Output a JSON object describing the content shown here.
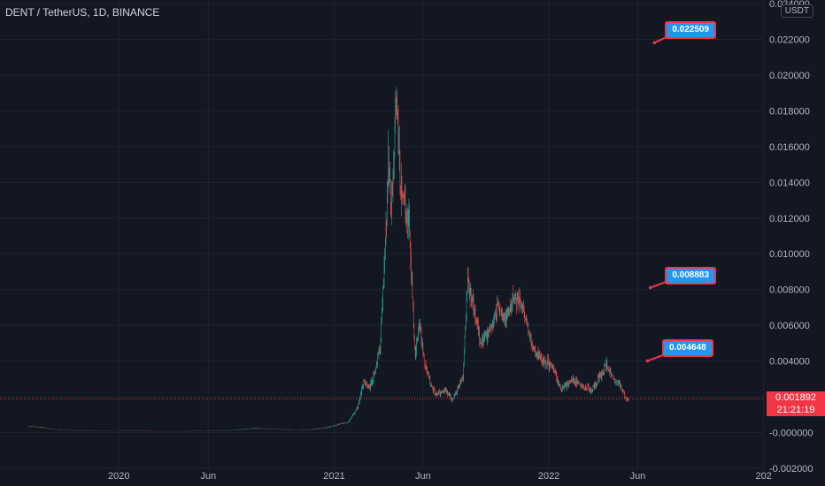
{
  "header": {
    "title": "DENT / TetherUS, 1D, BINANCE",
    "currency": "USDT"
  },
  "last_price": {
    "value": "0.001892",
    "countdown": "21:21:19"
  },
  "callouts": [
    {
      "label": "0.022509",
      "anchor_date": "2022-07-25",
      "anchor_price": 0.0225,
      "tip_date": "2022-07-07",
      "tip_price": 0.0224
    },
    {
      "label": "0.008883",
      "anchor_date": "2022-07-25",
      "anchor_price": 0.0088,
      "tip_date": "2022-06-30",
      "tip_price": 0.0087
    },
    {
      "label": "0.004648",
      "anchor_date": "2022-07-20",
      "anchor_price": 0.0047,
      "tip_date": "2022-06-25",
      "tip_price": 0.0046
    }
  ],
  "colors": {
    "background": "#131722",
    "grid": "#1f2330",
    "up": "#26a69a",
    "down": "#ef5350",
    "axis_text": "#b2b5be",
    "price_line": "#f23645",
    "callout_fill": "#2196f3",
    "callout_border": "#f23645"
  },
  "chart_data": {
    "type": "candlestick",
    "x_axis": {
      "type": "date",
      "range": [
        "2019-06-13",
        "2022-12-31"
      ],
      "ticks": [
        {
          "date": "2020-01-01",
          "label": "2020"
        },
        {
          "date": "2020-06-01",
          "label": "Jun"
        },
        {
          "date": "2021-01-01",
          "label": "2021"
        },
        {
          "date": "2021-06-01",
          "label": "Jun"
        },
        {
          "date": "2022-01-01",
          "label": "2022"
        },
        {
          "date": "2022-06-01",
          "label": "Jun"
        },
        {
          "date": "2023-01-01",
          "label": "202"
        }
      ]
    },
    "y_axis": {
      "range": [
        -0.0021,
        0.0242
      ],
      "position": "right",
      "ticks": [
        "0.024000",
        "0.022000",
        "0.020000",
        "0.018000",
        "0.016000",
        "0.014000",
        "0.012000",
        "0.010000",
        "0.008000",
        "0.006000",
        "0.004000",
        "0.002000",
        "-0.000000",
        "-0.002000"
      ]
    },
    "grid": true,
    "series": [
      {
        "approx_price_path": [
          [
            "2019-08-01",
            0.00035
          ],
          [
            "2019-08-20",
            0.0003
          ],
          [
            "2019-09-10",
            0.00018
          ],
          [
            "2019-10-15",
            0.00012
          ],
          [
            "2019-12-01",
            8e-05
          ],
          [
            "2020-02-01",
            0.00012
          ],
          [
            "2020-03-15",
            4e-05
          ],
          [
            "2020-05-01",
            8e-05
          ],
          [
            "2020-07-01",
            0.0001
          ],
          [
            "2020-08-20",
            0.00024
          ],
          [
            "2020-10-01",
            0.00018
          ],
          [
            "2020-11-15",
            0.00014
          ],
          [
            "2020-12-20",
            0.00028
          ],
          [
            "2021-01-25",
            0.0006
          ],
          [
            "2021-02-10",
            0.0014
          ],
          [
            "2021-02-20",
            0.0029
          ],
          [
            "2021-03-01",
            0.0025
          ],
          [
            "2021-03-10",
            0.0033
          ],
          [
            "2021-03-20",
            0.0048
          ],
          [
            "2021-03-28",
            0.0095
          ],
          [
            "2021-04-03",
            0.015
          ],
          [
            "2021-04-08",
            0.0122
          ],
          [
            "2021-04-13",
            0.0165
          ],
          [
            "2021-04-16",
            0.0196
          ],
          [
            "2021-04-19",
            0.0182
          ],
          [
            "2021-04-24",
            0.0135
          ],
          [
            "2021-04-30",
            0.0128
          ],
          [
            "2021-05-08",
            0.0118
          ],
          [
            "2021-05-13",
            0.0082
          ],
          [
            "2021-05-19",
            0.0042
          ],
          [
            "2021-05-25",
            0.0062
          ],
          [
            "2021-06-05",
            0.0036
          ],
          [
            "2021-06-22",
            0.0021
          ],
          [
            "2021-07-10",
            0.0024
          ],
          [
            "2021-07-21",
            0.0018
          ],
          [
            "2021-08-08",
            0.0032
          ],
          [
            "2021-08-16",
            0.0088
          ],
          [
            "2021-08-25",
            0.0072
          ],
          [
            "2021-09-07",
            0.005
          ],
          [
            "2021-09-20",
            0.0055
          ],
          [
            "2021-10-05",
            0.007
          ],
          [
            "2021-10-20",
            0.0063
          ],
          [
            "2021-11-02",
            0.0077
          ],
          [
            "2021-11-12",
            0.0074
          ],
          [
            "2021-11-26",
            0.006
          ],
          [
            "2021-12-05",
            0.0046
          ],
          [
            "2021-12-20",
            0.0041
          ],
          [
            "2022-01-05",
            0.0038
          ],
          [
            "2022-01-22",
            0.0024
          ],
          [
            "2022-02-10",
            0.003
          ],
          [
            "2022-02-28",
            0.0025
          ],
          [
            "2022-03-15",
            0.0024
          ],
          [
            "2022-03-30",
            0.0032
          ],
          [
            "2022-04-08",
            0.0038
          ],
          [
            "2022-04-20",
            0.003
          ],
          [
            "2022-05-01",
            0.0027
          ],
          [
            "2022-05-12",
            0.0019
          ],
          [
            "2022-05-16",
            0.001892
          ]
        ]
      }
    ]
  }
}
